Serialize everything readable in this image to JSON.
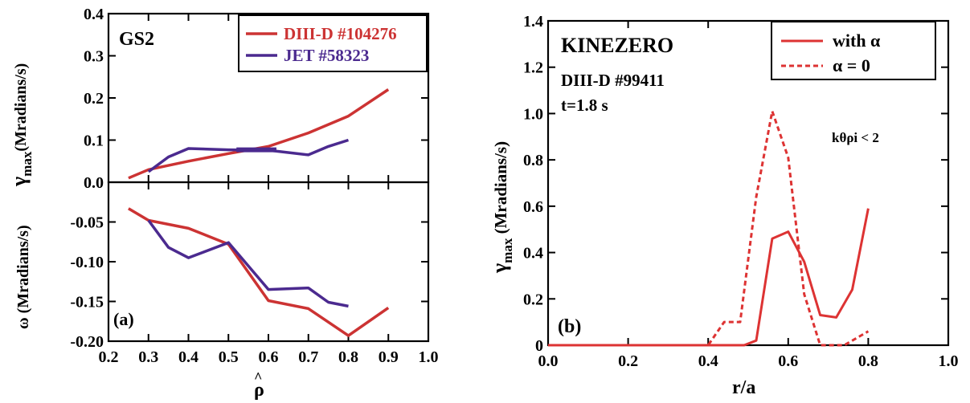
{
  "chart_data": [
    {
      "type": "line",
      "panel": "top-left",
      "annotation": "GS2",
      "ylabel_main": "γ",
      "ylabel_sub": "max",
      "ylabel_rest": "(Mradians/s)",
      "xlim": [
        0.2,
        1.0
      ],
      "ylim": [
        0.0,
        0.4
      ],
      "y_ticks": [
        "0.0",
        "0.1",
        "0.2",
        "0.3",
        "0.4"
      ],
      "legend": "top-right",
      "series": [
        {
          "name": "DIII-D #104276",
          "color": "#cc3333",
          "x": [
            0.25,
            0.3,
            0.4,
            0.5,
            0.6,
            0.7,
            0.8,
            0.9
          ],
          "y": [
            0.01,
            0.03,
            0.05,
            0.068,
            0.085,
            0.117,
            0.157,
            0.22
          ]
        },
        {
          "name": "JET #58323",
          "color": "#4b2a8f",
          "x": [
            0.3,
            0.35,
            0.4,
            0.5,
            0.6,
            0.7,
            0.75,
            0.8
          ],
          "y": [
            0.025,
            0.06,
            0.08,
            0.077,
            0.076,
            0.065,
            0.085,
            0.1
          ]
        }
      ]
    },
    {
      "type": "line",
      "panel": "bottom-left",
      "annotation": "(a)",
      "ylabel": "ω (Mradians/s)",
      "xlabel": "ρ",
      "xlim": [
        0.2,
        1.0
      ],
      "ylim": [
        -0.2,
        0.0
      ],
      "x_ticks": [
        "0.2",
        "0.3",
        "0.4",
        "0.5",
        "0.6",
        "0.7",
        "0.8",
        "0.9",
        "1.0"
      ],
      "y_ticks": [
        "-0.20",
        "-0.15",
        "-0.10",
        "-0.05"
      ],
      "series": [
        {
          "name": "DIII-D #104276",
          "color": "#cc3333",
          "x": [
            0.25,
            0.3,
            0.4,
            0.5,
            0.6,
            0.7,
            0.8,
            0.9
          ],
          "y": [
            -0.033,
            -0.048,
            -0.058,
            -0.078,
            -0.149,
            -0.159,
            -0.193,
            -0.158
          ]
        },
        {
          "name": "JET #58323",
          "color": "#4b2a8f",
          "x": [
            0.3,
            0.35,
            0.4,
            0.5,
            0.6,
            0.7,
            0.75,
            0.8
          ],
          "y": [
            -0.048,
            -0.082,
            -0.095,
            -0.076,
            -0.135,
            -0.133,
            -0.151,
            -0.156
          ]
        }
      ]
    },
    {
      "type": "line",
      "panel": "right",
      "annotation_title": "KINEZERO",
      "annotation_shot": "DIII-D #99411",
      "annotation_time": "t=1.8 s",
      "annotation_k": "kθρi < 2",
      "annotation_panel": "(b)",
      "ylabel_main": "γ",
      "ylabel_sub": "max",
      "ylabel_rest": " (Mradians/s)",
      "xlabel": "r/a",
      "xlim": [
        0.0,
        1.0
      ],
      "ylim": [
        0.0,
        1.4
      ],
      "x_ticks": [
        "0.0",
        "0.2",
        "0.4",
        "0.6",
        "0.8",
        "1.0"
      ],
      "y_ticks": [
        "0",
        "0.2",
        "0.4",
        "0.6",
        "0.8",
        "1.0",
        "1.2",
        "1.4"
      ],
      "legend": "top-right",
      "series": [
        {
          "name": "with α",
          "color": "#dd3333",
          "dash": false,
          "x": [
            0.0,
            0.49,
            0.52,
            0.56,
            0.6,
            0.64,
            0.68,
            0.72,
            0.76,
            0.8
          ],
          "y": [
            0.0,
            0.0,
            0.02,
            0.46,
            0.49,
            0.36,
            0.13,
            0.12,
            0.24,
            0.59
          ]
        },
        {
          "name": "α = 0",
          "color": "#dd3333",
          "dash": true,
          "x": [
            0.0,
            0.4,
            0.44,
            0.48,
            0.52,
            0.56,
            0.6,
            0.64,
            0.68,
            0.74,
            0.78,
            0.8
          ],
          "y": [
            0.0,
            0.0,
            0.1,
            0.1,
            0.64,
            1.01,
            0.81,
            0.22,
            0.0,
            0.0,
            0.04,
            0.06
          ]
        }
      ]
    }
  ]
}
